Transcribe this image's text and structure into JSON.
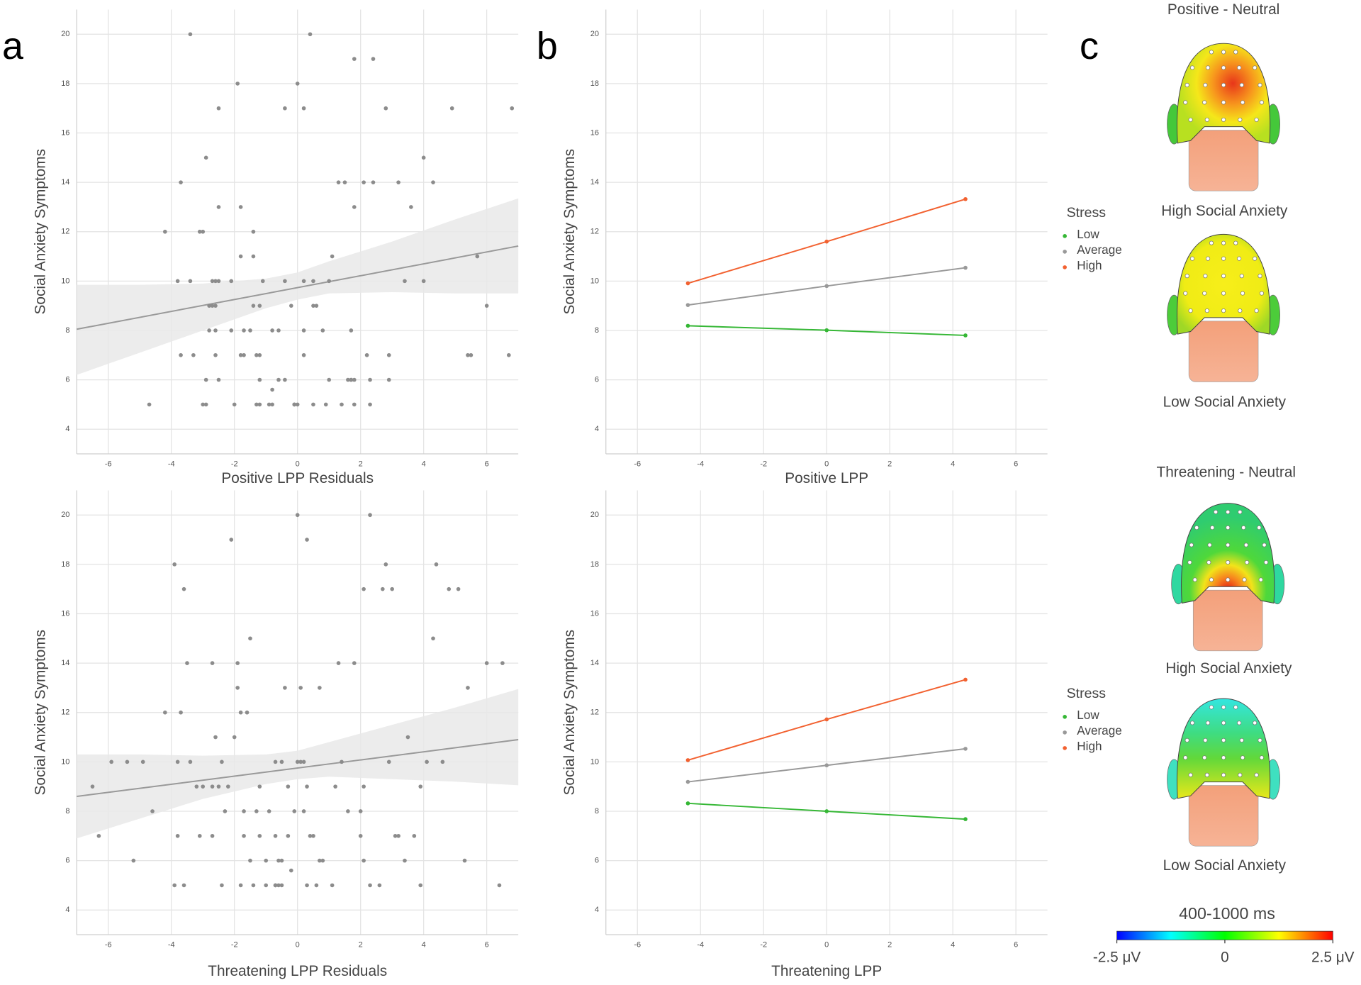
{
  "panel_labels": [
    "a",
    "b",
    "c"
  ],
  "chart_data": [
    {
      "type": "scatter",
      "x_label": "Positive LPP Residuals",
      "y_label": "Social Anxiety Symptoms",
      "color": "#8c8c8c",
      "grid": true,
      "xlim": [
        -7,
        7
      ],
      "ylim": [
        3,
        21
      ],
      "xticks": [
        -6,
        -4,
        -2,
        0,
        2,
        4,
        6
      ],
      "yticks": [
        4,
        6,
        8,
        10,
        12,
        14,
        16,
        18,
        20
      ],
      "x": [
        -3.4,
        0.4,
        1.8,
        2.4,
        -1.9,
        0,
        -2.5,
        -0.4,
        0.2,
        2.8,
        4.9,
        6.8,
        -2.9,
        4,
        -3.7,
        1.3,
        1.5,
        2.1,
        2.4,
        3.2,
        4.3,
        -2.5,
        -1.8,
        1.8,
        3.6,
        -4.2,
        -3.1,
        -3,
        -1.4,
        1.1,
        -1.8,
        -1.4,
        5.7,
        -3.8,
        -3.4,
        -2.7,
        -2.6,
        -2.5,
        -2.1,
        -1.1,
        -0.4,
        0.2,
        0.5,
        1,
        3.4,
        4,
        -2.8,
        -2.7,
        -2.6,
        -1.4,
        -1.2,
        -0.2,
        0.5,
        0.6,
        6,
        -2.8,
        -2.6,
        -2.1,
        -1.7,
        -1.5,
        -0.8,
        -0.6,
        0.2,
        0.8,
        1.7,
        -3.7,
        -3.3,
        -2.6,
        -1.8,
        -1.7,
        -1.3,
        -1.2,
        0.2,
        2.2,
        2.9,
        5.4,
        5.5,
        6.7,
        -2.9,
        -2.5,
        -1.2,
        -0.6,
        -0.4,
        1,
        1.6,
        1.7,
        1.7,
        1.8,
        2.3,
        2.9,
        -0.8,
        -4.7,
        -3,
        -2.9,
        -2,
        -1.3,
        -1.2,
        -0.9,
        -0.8,
        -0.1,
        -0.1,
        0,
        0.5,
        0.9,
        1.4,
        1.8,
        2.3
      ],
      "values": [
        20,
        20,
        19,
        19,
        18,
        18,
        17,
        17,
        17,
        17,
        17,
        17,
        15,
        15,
        14,
        14,
        14,
        14,
        14,
        14,
        14,
        13,
        13,
        13,
        13,
        12,
        12,
        12,
        12,
        11,
        11,
        11,
        11,
        10,
        10,
        10,
        10,
        10,
        10,
        10,
        10,
        10,
        10,
        10,
        10,
        10,
        9,
        9,
        9,
        9,
        9,
        9,
        9,
        9,
        9,
        8,
        8,
        8,
        8,
        8,
        8,
        8,
        8,
        8,
        8,
        7,
        7,
        7,
        7,
        7,
        7,
        7,
        7,
        7,
        7,
        7,
        7,
        7,
        6,
        6,
        6,
        6,
        6,
        6,
        6,
        6,
        6,
        6,
        6,
        6,
        5.6,
        5,
        5,
        5,
        5,
        5,
        5,
        5,
        5,
        5,
        5,
        5,
        5,
        5,
        5,
        5,
        5
      ],
      "regression": {
        "color": "#999999",
        "x": [
          -7,
          7
        ],
        "values": [
          8.05,
          11.42
        ]
      },
      "ci": {
        "color": "#e9e9e9",
        "x": [
          -7,
          -5,
          -3,
          -1,
          0,
          1,
          3,
          5,
          7
        ],
        "upper": [
          9.85,
          9.85,
          9.9,
          10.1,
          10.35,
          10.8,
          11.6,
          12.5,
          13.35
        ],
        "lower": [
          6.2,
          7.1,
          8,
          8.9,
          9.25,
          9.5,
          9.55,
          9.5,
          9.5
        ]
      }
    },
    {
      "type": "scatter",
      "x_label": "Threatening LPP Residuals",
      "y_label": "Social Anxiety Symptoms",
      "color": "#8c8c8c",
      "grid": true,
      "xlim": [
        -7,
        7
      ],
      "ylim": [
        3,
        21
      ],
      "xticks": [
        -6,
        -4,
        -2,
        0,
        2,
        4,
        6
      ],
      "yticks": [
        4,
        6,
        8,
        10,
        12,
        14,
        16,
        18,
        20
      ],
      "x": [
        0,
        2.3,
        -2.1,
        0.3,
        -3.9,
        2.8,
        4.4,
        -3.6,
        2.1,
        2.7,
        3,
        4.8,
        5.1,
        -1.5,
        4.3,
        -3.5,
        -2.7,
        -1.9,
        1.3,
        1.8,
        6,
        6.5,
        -1.9,
        -0.4,
        0.1,
        0.7,
        5.4,
        -4.2,
        -3.7,
        -1.8,
        -1.6,
        -2.6,
        -2,
        3.5,
        -5.9,
        -5.4,
        -4.9,
        -3.8,
        -3.4,
        -2.4,
        -0.7,
        -0.5,
        0,
        0.1,
        0.2,
        1.4,
        2.9,
        4.1,
        4.6,
        -6.5,
        -3.2,
        -3,
        -2.7,
        -2.5,
        -2.2,
        -1.2,
        -0.3,
        0.3,
        1.2,
        2.1,
        3.9,
        -4.6,
        -2.3,
        -1.7,
        -1.3,
        -0.9,
        -0.1,
        0.2,
        1.6,
        2,
        -0.2,
        -6.3,
        -3.8,
        -3.1,
        -2.7,
        -1.7,
        -1.2,
        -0.7,
        -0.3,
        0.4,
        0.5,
        2,
        3.1,
        3.2,
        3.7,
        -5.2,
        -1.5,
        -1,
        -0.6,
        -0.5,
        0.7,
        0.8,
        2.1,
        3.4,
        5.3,
        -3.9,
        -3.6,
        -2.4,
        -1.8,
        -1.4,
        -1,
        -0.7,
        -0.7,
        -0.6,
        -0.5,
        0.3,
        0.6,
        1.1,
        2.3,
        2.6,
        3.9,
        6.4
      ],
      "values": [
        20,
        20,
        19,
        19,
        18,
        18,
        18,
        17,
        17,
        17,
        17,
        17,
        17,
        15,
        15,
        14,
        14,
        14,
        14,
        14,
        14,
        14,
        13,
        13,
        13,
        13,
        13,
        12,
        12,
        12,
        12,
        11,
        11,
        11,
        10,
        10,
        10,
        10,
        10,
        10,
        10,
        10,
        10,
        10,
        10,
        10,
        10,
        10,
        10,
        9,
        9,
        9,
        9,
        9,
        9,
        9,
        9,
        9,
        9,
        9,
        9,
        8,
        8,
        8,
        8,
        8,
        8,
        8,
        8,
        8,
        5.6,
        7,
        7,
        7,
        7,
        7,
        7,
        7,
        7,
        7,
        7,
        7,
        7,
        7,
        7,
        6,
        6,
        6,
        6,
        6,
        6,
        6,
        6,
        6,
        6,
        5,
        5,
        5,
        5,
        5,
        5,
        5,
        5,
        5,
        5,
        5,
        5,
        5,
        5,
        5,
        5,
        5
      ],
      "regression": {
        "color": "#999999",
        "x": [
          -7,
          7
        ],
        "values": [
          8.6,
          10.9
        ]
      },
      "ci": {
        "color": "#e9e9e9",
        "x": [
          -7,
          -5,
          -3,
          -1,
          0,
          1,
          3,
          5,
          7
        ],
        "upper": [
          10.3,
          10.3,
          10.25,
          10.3,
          10.45,
          10.8,
          11.5,
          12.2,
          12.95
        ],
        "lower": [
          6.9,
          7.7,
          8.5,
          9.1,
          9.3,
          9.4,
          9.3,
          9.2,
          9.05
        ]
      }
    },
    {
      "type": "line",
      "x_label": "Positive LPP",
      "y_label": "Social Anxiety Symptoms",
      "grid": true,
      "legend": "right",
      "legend_title": "Stress",
      "xlim": [
        -7,
        7
      ],
      "ylim": [
        3,
        21
      ],
      "xticks": [
        -6,
        -4,
        -2,
        0,
        2,
        4,
        6
      ],
      "yticks": [
        4,
        6,
        8,
        10,
        12,
        14,
        16,
        18,
        20
      ],
      "x": [
        -4.4,
        0,
        4.4
      ],
      "series": [
        {
          "name": "Low",
          "color": "#35b735",
          "values": [
            8.19,
            8.01,
            7.8
          ]
        },
        {
          "name": "Average",
          "color": "#999999",
          "values": [
            9.03,
            9.8,
            10.54
          ]
        },
        {
          "name": "High",
          "color": "#f26130",
          "values": [
            9.91,
            11.6,
            13.32
          ]
        }
      ]
    },
    {
      "type": "line",
      "x_label": "Threatening LPP",
      "y_label": "Social Anxiety Symptoms",
      "grid": true,
      "legend": "right",
      "legend_title": "Stress",
      "xlim": [
        -7,
        7
      ],
      "ylim": [
        3,
        21
      ],
      "xticks": [
        -6,
        -4,
        -2,
        0,
        2,
        4,
        6
      ],
      "yticks": [
        4,
        6,
        8,
        10,
        12,
        14,
        16,
        18,
        20
      ],
      "x": [
        -4.4,
        0,
        4.4
      ],
      "series": [
        {
          "name": "Low",
          "color": "#35b735",
          "values": [
            8.32,
            8,
            7.68
          ]
        },
        {
          "name": "Average",
          "color": "#999999",
          "values": [
            9.19,
            9.86,
            10.53
          ]
        },
        {
          "name": "High",
          "color": "#f26130",
          "values": [
            10.07,
            11.72,
            13.33
          ]
        }
      ]
    }
  ],
  "topomaps": {
    "groups": [
      {
        "title": "Positive - Neutral",
        "maps": [
          "High Social Anxiety",
          "Low Social Anxiety"
        ]
      },
      {
        "title": "Threatening - Neutral",
        "maps": [
          "High Social Anxiety",
          "Low Social Anxiety"
        ]
      }
    ],
    "colorbar": {
      "title": "400-1000 ms",
      "lim": [
        -2.5,
        2.5
      ],
      "ticks": [
        {
          "value": -2.5,
          "label": "-2.5 μV"
        },
        0,
        {
          "value": 2.5,
          "label": "2.5 μV"
        }
      ]
    }
  }
}
